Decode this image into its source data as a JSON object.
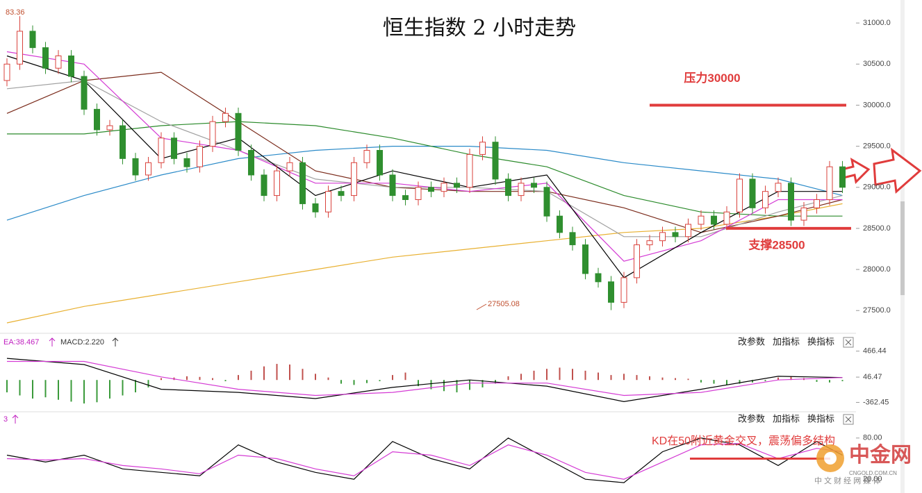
{
  "chart_data": [
    {
      "type": "candlestick",
      "title": "恒生指数 2 小时走势",
      "open": [
        30300,
        30500,
        30900,
        30700,
        30450,
        30600,
        30350,
        29950,
        29700,
        29750,
        29350,
        29150,
        29300,
        29600,
        29350,
        29250,
        29500,
        29800,
        29900,
        29450,
        29150,
        28900,
        29200,
        29300,
        28800,
        28700,
        28950,
        28900,
        29300,
        29450,
        29150,
        28900,
        28850,
        29000,
        28950,
        29050,
        29000,
        29400,
        29550,
        29100,
        28900,
        29050,
        29000,
        28650,
        28450,
        28300,
        27950,
        27850,
        27600,
        27900,
        28300,
        28350,
        28450,
        28400,
        28550,
        28650,
        28550,
        28700,
        29100,
        28750,
        28950,
        29050,
        28600,
        28750,
        28850,
        29250
      ],
      "high": [
        30570,
        31083.36,
        30970,
        30770,
        30670,
        30670,
        30420,
        30020,
        29820,
        29820,
        29420,
        29370,
        29670,
        29670,
        29420,
        29570,
        29870,
        29970,
        29970,
        29520,
        29220,
        29270,
        29370,
        29370,
        28870,
        29020,
        29020,
        29370,
        29520,
        29520,
        29220,
        28970,
        29070,
        29070,
        29120,
        29120,
        29470,
        29620,
        29620,
        29170,
        29120,
        29120,
        29070,
        28720,
        28520,
        28370,
        28020,
        27920,
        27970,
        28370,
        28420,
        28520,
        28520,
        28620,
        28720,
        28720,
        28770,
        29170,
        29170,
        29020,
        29120,
        29120,
        28820,
        28920,
        29320,
        29320
      ],
      "low": [
        30230,
        30430,
        30630,
        30380,
        30380,
        30280,
        29880,
        29630,
        29630,
        29280,
        29080,
        29080,
        29230,
        29280,
        29180,
        29180,
        29430,
        29730,
        29380,
        29080,
        28830,
        28830,
        29130,
        28730,
        28630,
        28630,
        28830,
        28830,
        29230,
        29080,
        28830,
        28780,
        28780,
        28880,
        28880,
        28930,
        28930,
        29330,
        29030,
        28830,
        28830,
        28930,
        28580,
        28380,
        28230,
        27880,
        27780,
        27505.08,
        27530,
        27830,
        28230,
        28280,
        28330,
        28330,
        28480,
        28480,
        28480,
        28630,
        28680,
        28680,
        28880,
        28530,
        28530,
        28680,
        28780,
        28930
      ],
      "close": [
        30500,
        30900,
        30700,
        30450,
        30600,
        30350,
        29950,
        29700,
        29750,
        29350,
        29150,
        29300,
        29600,
        29350,
        29250,
        29500,
        29800,
        29900,
        29450,
        29150,
        28900,
        29200,
        29300,
        28800,
        28700,
        28950,
        28900,
        29300,
        29450,
        29150,
        28900,
        28850,
        29000,
        28950,
        29050,
        29000,
        29400,
        29550,
        29100,
        28900,
        29050,
        29000,
        28650,
        28450,
        28300,
        27950,
        27850,
        27600,
        27900,
        28300,
        28350,
        28450,
        28400,
        28550,
        28650,
        28550,
        28700,
        29100,
        28750,
        28950,
        29050,
        28600,
        28750,
        28850,
        29250,
        29000
      ],
      "up_color": "#d9413b",
      "down_color": "#2f8f2f",
      "ma_x": [
        0,
        6,
        12,
        18,
        24,
        30,
        36,
        42,
        48,
        54,
        60,
        65
      ],
      "ma_lines": [
        {
          "color": "#000000",
          "values": [
            30600,
            30300,
            29350,
            29600,
            28900,
            29200,
            29000,
            29150,
            27900,
            28450,
            28950,
            28950
          ]
        },
        {
          "color": "#d43ad4",
          "values": [
            30650,
            30500,
            29600,
            29450,
            29050,
            29050,
            28950,
            29050,
            28100,
            28350,
            28850,
            28850
          ]
        },
        {
          "color": "#a0a0a0",
          "values": [
            30200,
            30300,
            29800,
            29450,
            29100,
            29000,
            29000,
            28950,
            28400,
            28400,
            28700,
            28900
          ]
        },
        {
          "color": "#7a2a1a",
          "values": [
            29900,
            30300,
            30400,
            29800,
            29200,
            29000,
            28950,
            28950,
            28750,
            28450,
            28650,
            28850
          ]
        },
        {
          "color": "#2a8a2a",
          "values": [
            29650,
            29650,
            29750,
            29800,
            29750,
            29600,
            29400,
            29250,
            28900,
            28700,
            28650,
            28650
          ]
        },
        {
          "color": "#2a8ac8",
          "values": [
            28600,
            28900,
            29150,
            29350,
            29450,
            29500,
            29500,
            29450,
            29300,
            29200,
            29100,
            28900
          ]
        },
        {
          "color": "#e8b030",
          "values": [
            27350,
            27550,
            27700,
            27850,
            28000,
            28150,
            28250,
            28350,
            28450,
            28500,
            28650,
            28800
          ]
        }
      ],
      "ylim": [
        27240,
        31280
      ],
      "yticks": [
        {
          "value": 31000,
          "label": "31000.0"
        },
        {
          "value": 30500,
          "label": "30500.0"
        },
        {
          "value": 30000,
          "label": "30000.0"
        },
        {
          "value": 29500,
          "label": "29500.0"
        },
        {
          "value": 29000,
          "label": "29000.0"
        },
        {
          "value": 28500,
          "label": "28500.0"
        },
        {
          "value": 28000,
          "label": "28000.0"
        },
        {
          "value": 27500,
          "label": "27500.0"
        }
      ],
      "labels": [
        "83.36",
        "27505.08"
      ],
      "annotations": [
        {
          "text": "压力30000",
          "value": 30000
        },
        {
          "text": "支撑28500",
          "value": 28500
        }
      ],
      "annotation_color": "#e03c3c"
    },
    {
      "type": "macd",
      "labels": [
        "EA:38.467",
        "MACD:2.220"
      ],
      "histogram": [
        -200,
        -250,
        -300,
        -280,
        -320,
        -350,
        -380,
        -360,
        -300,
        -250,
        -200,
        -120,
        30,
        40,
        60,
        50,
        30,
        -20,
        80,
        150,
        220,
        260,
        250,
        180,
        100,
        40,
        -60,
        -80,
        -50,
        -20,
        80,
        120,
        -100,
        -150,
        -180,
        -200,
        -160,
        -120,
        -60,
        60,
        100,
        150,
        180,
        200,
        180,
        150,
        120,
        80,
        100,
        80,
        60,
        40,
        30,
        20,
        -40,
        -60,
        -80,
        -60,
        -40,
        -20,
        40,
        60,
        30,
        -30,
        -40,
        -20
      ],
      "x": [
        0,
        6,
        12,
        18,
        24,
        30,
        36,
        42,
        48,
        54,
        60,
        65
      ],
      "series": [
        {
          "color": "#000000",
          "values": [
            350,
            250,
            -150,
            -200,
            -300,
            -120,
            0,
            -100,
            -350,
            -150,
            60,
            40
          ]
        },
        {
          "color": "#d43ad4",
          "values": [
            300,
            300,
            50,
            -150,
            -250,
            -200,
            -50,
            -50,
            -250,
            -200,
            0,
            40
          ]
        }
      ],
      "ylim": [
        -480,
        620
      ],
      "yticks": [
        466.44,
        46.47,
        -362.45
      ]
    },
    {
      "type": "kd",
      "labels": [
        "3"
      ],
      "x": [
        0,
        3,
        6,
        9,
        12,
        15,
        18,
        21,
        24,
        27,
        30,
        33,
        36,
        39,
        42,
        45,
        48,
        51,
        54,
        57,
        60,
        63,
        65
      ],
      "series": [
        {
          "color": "#000000",
          "values": [
            55,
            45,
            55,
            35,
            30,
            25,
            70,
            45,
            30,
            20,
            75,
            50,
            35,
            80,
            50,
            20,
            15,
            60,
            80,
            70,
            40,
            75,
            55
          ]
        },
        {
          "color": "#d43ad4",
          "values": [
            50,
            48,
            50,
            40,
            35,
            28,
            55,
            50,
            35,
            25,
            60,
            55,
            40,
            70,
            55,
            30,
            20,
            45,
            70,
            72,
            50,
            65,
            60
          ]
        }
      ],
      "ylim": [
        5,
        96
      ],
      "yticks": [
        {
          "value": 80,
          "label": "80.00"
        },
        {
          "value": 20,
          "label": "20.00"
        }
      ],
      "annotations": [
        {
          "text": "KD在50附近黄金交叉，震荡偏多结构",
          "value": 50
        }
      ]
    }
  ],
  "toolbar": [
    "改参数",
    "加指标",
    "换指标"
  ],
  "watermark": {
    "name": "中金网",
    "url": "CNGOLD.COM.CN",
    "slogan": "中 文 财 经 网 媒 体"
  }
}
